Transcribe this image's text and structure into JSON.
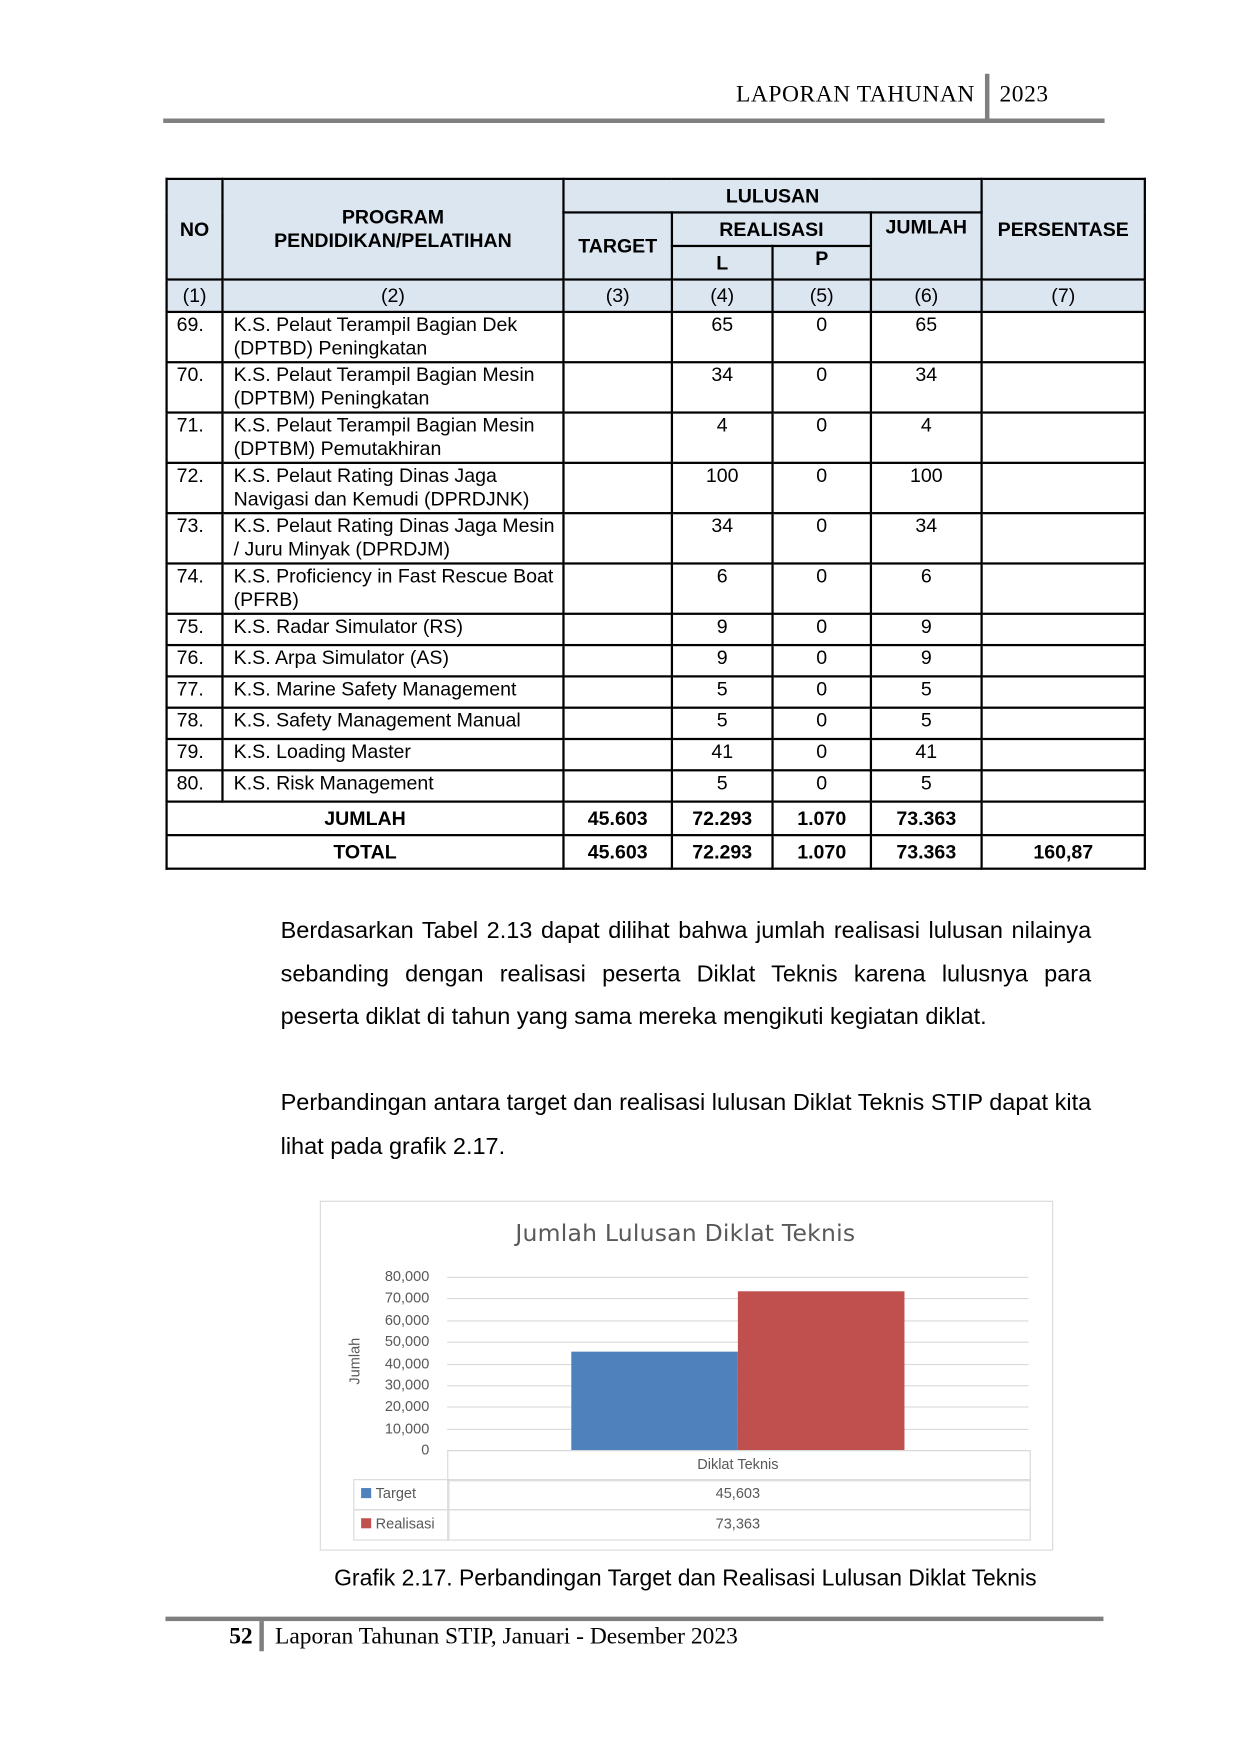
{
  "header": {
    "title": "LAPORAN TAHUNAN",
    "year": "2023"
  },
  "table": {
    "headers": {
      "no": "NO",
      "program": "PROGRAM PENDIDIKAN/PELATIHAN",
      "lulusan": "LULUSAN",
      "target": "TARGET",
      "realisasi": "REALISASI",
      "l": "L",
      "p": "P",
      "jumlah": "JUMLAH",
      "persentase": "PERSENTASE"
    },
    "index": [
      "(1)",
      "(2)",
      "(3)",
      "(4)",
      "(5)",
      "(6)",
      "(7)"
    ],
    "rows": [
      {
        "no": "69.",
        "program": "K.S. Pelaut Terampil Bagian Dek (DPTBD) Peningkatan",
        "target": "",
        "l": "65",
        "p": "0",
        "jumlah": "65",
        "persentase": ""
      },
      {
        "no": "70.",
        "program": "K.S. Pelaut Terampil Bagian Mesin (DPTBM) Peningkatan",
        "target": "",
        "l": "34",
        "p": "0",
        "jumlah": "34",
        "persentase": ""
      },
      {
        "no": "71.",
        "program": "K.S. Pelaut Terampil Bagian Mesin (DPTBM) Pemutakhiran",
        "target": "",
        "l": "4",
        "p": "0",
        "jumlah": "4",
        "persentase": ""
      },
      {
        "no": "72.",
        "program": "K.S. Pelaut Rating Dinas Jaga Navigasi dan Kemudi (DPRDJNK)",
        "target": "",
        "l": "100",
        "p": "0",
        "jumlah": "100",
        "persentase": ""
      },
      {
        "no": "73.",
        "program": "K.S. Pelaut Rating Dinas Jaga Mesin / Juru Minyak (DPRDJM)",
        "target": "",
        "l": "34",
        "p": "0",
        "jumlah": "34",
        "persentase": ""
      },
      {
        "no": "74.",
        "program": "K.S. Proficiency in Fast Rescue Boat (PFRB)",
        "target": "",
        "l": "6",
        "p": "0",
        "jumlah": "6",
        "persentase": ""
      },
      {
        "no": "75.",
        "program": "K.S. Radar Simulator (RS)",
        "target": "",
        "l": "9",
        "p": "0",
        "jumlah": "9",
        "persentase": ""
      },
      {
        "no": "76.",
        "program": "K.S. Arpa Simulator (AS)",
        "target": "",
        "l": "9",
        "p": "0",
        "jumlah": "9",
        "persentase": ""
      },
      {
        "no": "77.",
        "program": "K.S. Marine Safety Management",
        "target": "",
        "l": "5",
        "p": "0",
        "jumlah": "5",
        "persentase": ""
      },
      {
        "no": "78.",
        "program": "K.S. Safety Management Manual",
        "target": "",
        "l": "5",
        "p": "0",
        "jumlah": "5",
        "persentase": ""
      },
      {
        "no": "79.",
        "program": "K.S. Loading Master",
        "target": "",
        "l": "41",
        "p": "0",
        "jumlah": "41",
        "persentase": ""
      },
      {
        "no": "80.",
        "program": "K.S. Risk Management",
        "target": "",
        "l": "5",
        "p": "0",
        "jumlah": "5",
        "persentase": ""
      }
    ],
    "jumlah": {
      "label": "JUMLAH",
      "target": "45.603",
      "l": "72.293",
      "p": "1.070",
      "jumlah": "73.363",
      "persentase": ""
    },
    "total": {
      "label": "TOTAL",
      "target": "45.603",
      "l": "72.293",
      "p": "1.070",
      "jumlah": "73.363",
      "persentase": "160,87"
    }
  },
  "paragraphs": [
    "Berdasarkan Tabel 2.13 dapat dilihat bahwa jumlah realisasi lulusan nilainya sebanding dengan realisasi peserta Diklat Teknis karena lulusnya para peserta diklat di tahun yang sama mereka mengikuti kegiatan diklat.",
    "Perbandingan antara target dan realisasi lulusan Diklat Teknis STIP dapat kita lihat pada grafik 2.17."
  ],
  "chart_data": {
    "type": "bar",
    "title": "Jumlah Lulusan Diklat Teknis",
    "ylabel": "Jumlah",
    "xlabel": "",
    "categories": [
      "Diklat Teknis"
    ],
    "ylim": [
      0,
      80000
    ],
    "yticks": [
      "80,000",
      "70,000",
      "60,000",
      "50,000",
      "40,000",
      "30,000",
      "20,000",
      "10,000",
      "0"
    ],
    "grid": true,
    "legend": "data-table",
    "series": [
      {
        "name": "Target",
        "values": [
          45603
        ],
        "label": "45,603",
        "color": "#4f81bd"
      },
      {
        "name": "Realisasi",
        "values": [
          73363
        ],
        "label": "73,363",
        "color": "#c0504d"
      }
    ]
  },
  "caption": "Grafik 2.17. Perbandingan Target dan Realisasi Lulusan Diklat Teknis",
  "footer": {
    "page": "52",
    "text": "Laporan Tahunan STIP, Januari - Desember 2023"
  }
}
